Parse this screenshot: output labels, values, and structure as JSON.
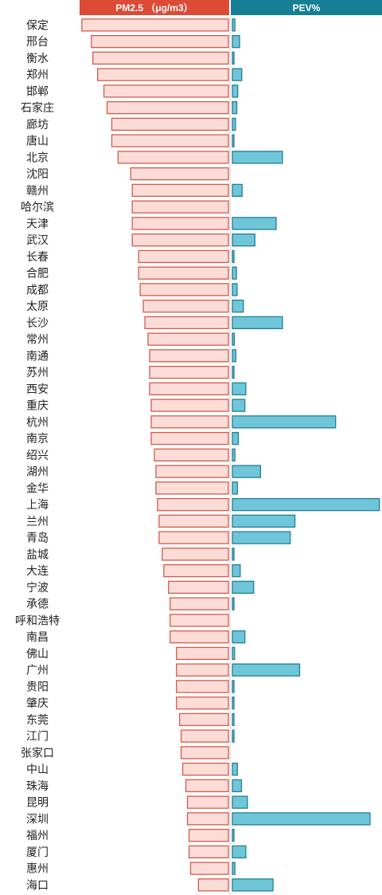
{
  "headers": {
    "left": "PM2.5 （μg/m3）",
    "right": "PEV%"
  },
  "colors": {
    "left_header": "#dd4a35",
    "right_header": "#157f95",
    "left_bar_fill": "#fbdcd6",
    "left_bar_stroke": "#d65a4a",
    "right_bar_fill": "#6fc6d9",
    "right_bar_stroke": "#217f98"
  },
  "chart_data": {
    "type": "bar",
    "title": "",
    "xlabel": "",
    "ylabel": "",
    "categories": [
      "保定",
      "邢台",
      "衡水",
      "郑州",
      "邯郸",
      "石家庄",
      "廊坊",
      "唐山",
      "北京",
      "沈阳",
      "赣州",
      "哈尔滨",
      "天津",
      "武汉",
      "长春",
      "合肥",
      "成都",
      "太原",
      "长沙",
      "常州",
      "南通",
      "苏州",
      "西安",
      "重庆",
      "杭州",
      "南京",
      "绍兴",
      "湖州",
      "金华",
      "上海",
      "兰州",
      "青岛",
      "盐城",
      "大连",
      "宁波",
      "承德",
      "呼和浩特",
      "南昌",
      "佛山",
      "广州",
      "贵阳",
      "肇庆",
      "东莞",
      "江门",
      "张家口",
      "中山",
      "珠海",
      "昆明",
      "深圳",
      "福州",
      "厦门",
      "惠州",
      "海口"
    ],
    "series": [
      {
        "name": "PM2.5 （μg/m3）",
        "values": [
          93,
          87,
          86,
          83,
          79,
          77,
          74,
          74,
          70,
          62,
          61,
          61,
          61,
          61,
          57,
          57,
          56,
          54,
          53,
          51,
          50,
          50,
          50,
          49,
          49,
          49,
          47,
          46,
          46,
          45,
          44,
          44,
          42,
          41,
          38,
          37,
          37,
          37,
          33,
          33,
          33,
          33,
          31,
          30,
          30,
          29,
          27,
          26,
          26,
          25,
          25,
          24,
          19
        ]
      },
      {
        "name": "PEV%",
        "values": [
          0.8,
          2.3,
          0.4,
          3.0,
          1.7,
          1.4,
          1.0,
          0.3,
          16.0,
          0,
          3.1,
          0,
          14.0,
          7.2,
          0.5,
          1.3,
          1.5,
          3.5,
          16.0,
          0.6,
          1.1,
          0.3,
          4.3,
          4.0,
          33.0,
          1.9,
          0.8,
          9.0,
          1.6,
          47.0,
          20.0,
          18.5,
          0.5,
          2.5,
          6.8,
          0.3,
          0,
          4.0,
          0.7,
          21.5,
          0.3,
          0.3,
          0.3,
          0.3,
          0,
          1.6,
          2.9,
          4.8,
          44.0,
          0.5,
          4.3,
          0.8,
          13.0
        ]
      }
    ]
  }
}
